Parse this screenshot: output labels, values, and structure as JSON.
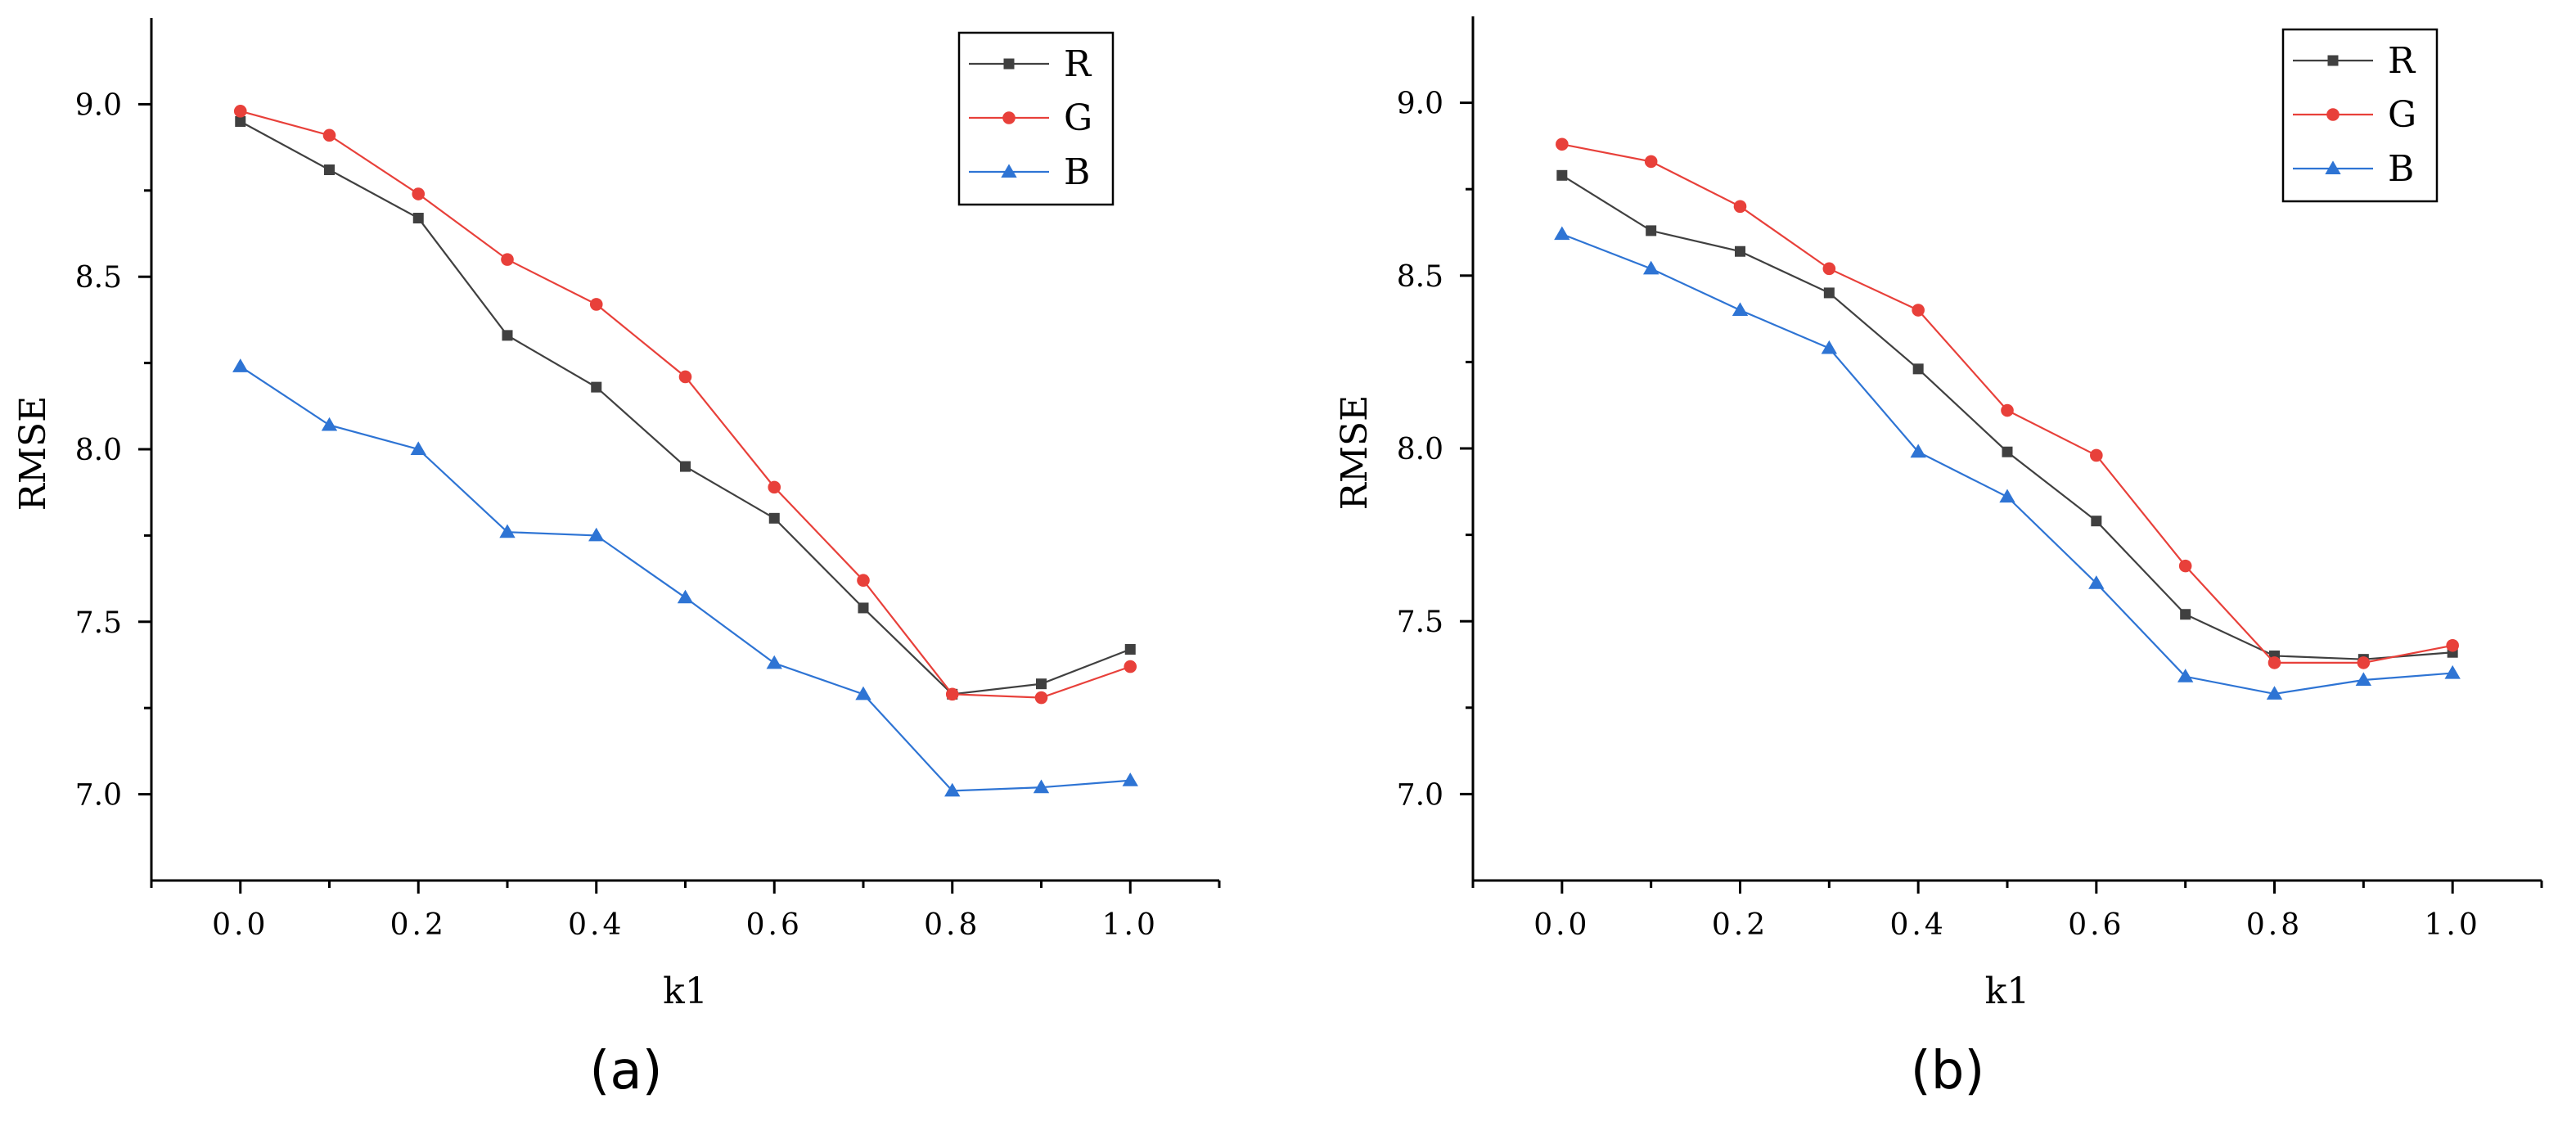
{
  "figure": {
    "captions": [
      "(a)",
      "(b)"
    ]
  },
  "colors": {
    "R": "#404040",
    "G": "#e8403a",
    "B": "#2e74d4",
    "axis": "#000000"
  },
  "chart_data": [
    {
      "type": "line",
      "panel": "(a)",
      "title": "",
      "xlabel": "k1",
      "ylabel": "RMSE",
      "xlim": [
        -0.1,
        1.1
      ],
      "ylim": [
        6.75,
        9.25
      ],
      "xticks": [
        "0.0",
        "0.2",
        "0.4",
        "0.6",
        "0.8",
        "1.0"
      ],
      "yticks": [
        "7.0",
        "7.5",
        "8.0",
        "8.5",
        "9.0"
      ],
      "legend_position": "top-right",
      "x": [
        0.0,
        0.1,
        0.2,
        0.3,
        0.4,
        0.5,
        0.6,
        0.7,
        0.8,
        0.9,
        1.0
      ],
      "series": [
        {
          "name": "R",
          "marker": "square",
          "values": [
            8.95,
            8.81,
            8.67,
            8.33,
            8.18,
            7.95,
            7.8,
            7.54,
            7.29,
            7.32,
            7.42
          ]
        },
        {
          "name": "G",
          "marker": "circle",
          "values": [
            8.98,
            8.91,
            8.74,
            8.55,
            8.42,
            8.21,
            7.89,
            7.62,
            7.29,
            7.28,
            7.37
          ]
        },
        {
          "name": "B",
          "marker": "triangle",
          "values": [
            8.24,
            8.07,
            8.0,
            7.76,
            7.75,
            7.57,
            7.38,
            7.29,
            7.01,
            7.02,
            7.04
          ]
        }
      ]
    },
    {
      "type": "line",
      "panel": "(b)",
      "title": "",
      "xlabel": "k1",
      "ylabel": "RMSE",
      "xlim": [
        -0.1,
        1.1
      ],
      "ylim": [
        6.75,
        9.25
      ],
      "xticks": [
        "0.0",
        "0.2",
        "0.4",
        "0.6",
        "0.8",
        "1.0"
      ],
      "yticks": [
        "7.0",
        "7.5",
        "8.0",
        "8.5",
        "9.0"
      ],
      "legend_position": "top-right",
      "x": [
        0.0,
        0.1,
        0.2,
        0.3,
        0.4,
        0.5,
        0.6,
        0.7,
        0.8,
        0.9,
        1.0
      ],
      "series": [
        {
          "name": "R",
          "marker": "square",
          "values": [
            8.79,
            8.63,
            8.57,
            8.45,
            8.23,
            7.99,
            7.79,
            7.52,
            7.4,
            7.39,
            7.41
          ]
        },
        {
          "name": "G",
          "marker": "circle",
          "values": [
            8.88,
            8.83,
            8.7,
            8.52,
            8.4,
            8.11,
            7.98,
            7.66,
            7.38,
            7.38,
            7.43
          ]
        },
        {
          "name": "B",
          "marker": "triangle",
          "values": [
            8.62,
            8.52,
            8.4,
            8.29,
            7.99,
            7.86,
            7.61,
            7.34,
            7.29,
            7.33,
            7.35
          ]
        }
      ]
    }
  ]
}
